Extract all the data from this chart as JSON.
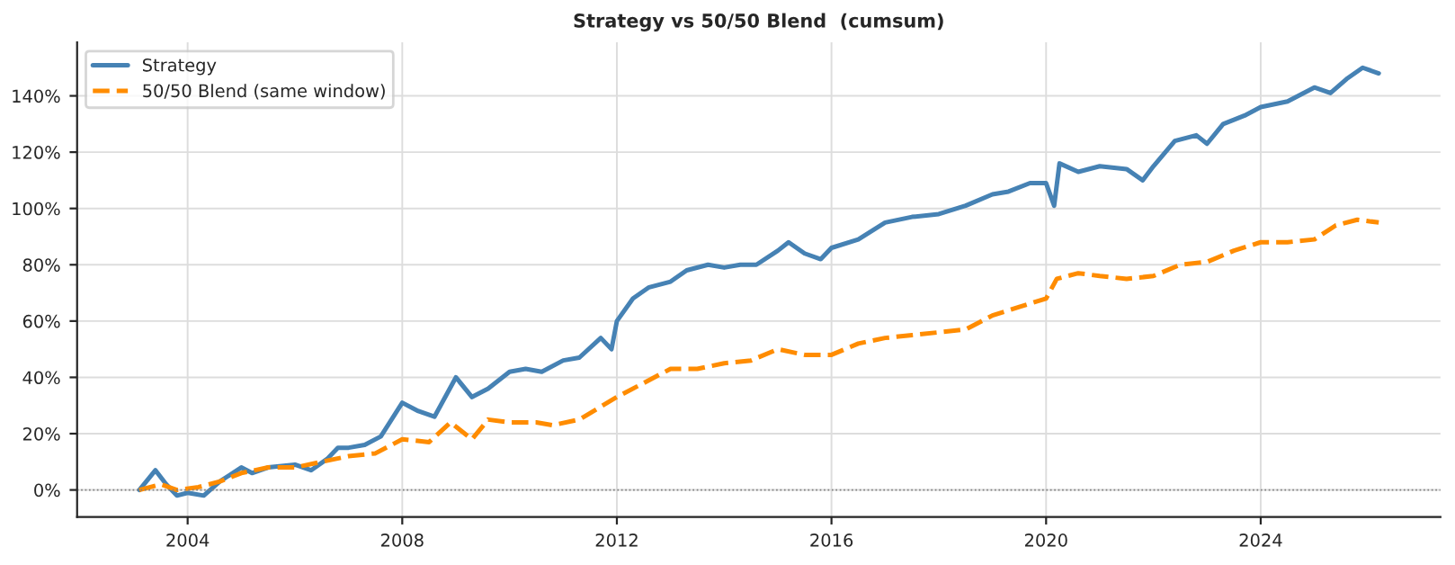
{
  "chart_data": {
    "type": "line",
    "title": "Strategy vs 50/50 Blend  (cumsum)",
    "series": [
      {
        "name": "Strategy",
        "color": "#4682b4",
        "line_style": "solid",
        "x": [
          2003.1,
          2003.4,
          2003.6,
          2003.8,
          2004.0,
          2004.3,
          2004.6,
          2005.0,
          2005.2,
          2005.5,
          2006.0,
          2006.3,
          2006.6,
          2006.8,
          2007.0,
          2007.3,
          2007.6,
          2008.0,
          2008.3,
          2008.6,
          2009.0,
          2009.3,
          2009.6,
          2010.0,
          2010.3,
          2010.6,
          2011.0,
          2011.3,
          2011.7,
          2011.9,
          2012.0,
          2012.3,
          2012.6,
          2013.0,
          2013.3,
          2013.7,
          2014.0,
          2014.3,
          2014.6,
          2015.0,
          2015.2,
          2015.5,
          2015.8,
          2016.0,
          2016.5,
          2017.0,
          2017.5,
          2018.0,
          2018.5,
          2019.0,
          2019.3,
          2019.7,
          2020.0,
          2020.15,
          2020.25,
          2020.6,
          2021.0,
          2021.5,
          2021.8,
          2022.0,
          2022.4,
          2022.8,
          2023.0,
          2023.3,
          2023.7,
          2024.0,
          2024.5,
          2025.0,
          2025.3,
          2025.6,
          2025.9,
          2026.2
        ],
        "values": [
          0,
          7,
          2,
          -2,
          -1,
          -2,
          3,
          8,
          6,
          8,
          9,
          7,
          11,
          15,
          15,
          16,
          19,
          31,
          28,
          26,
          40,
          33,
          36,
          42,
          43,
          42,
          46,
          47,
          54,
          50,
          60,
          68,
          72,
          74,
          78,
          80,
          79,
          80,
          80,
          85,
          88,
          84,
          82,
          86,
          89,
          95,
          97,
          98,
          101,
          105,
          106,
          109,
          109,
          101,
          116,
          113,
          115,
          114,
          110,
          115,
          124,
          126,
          123,
          130,
          133,
          136,
          138,
          143,
          141,
          146,
          150,
          148
        ]
      },
      {
        "name": "50/50 Blend (same window)",
        "color": "#ff8c00",
        "line_style": "dashed",
        "x": [
          2003.1,
          2003.5,
          2003.8,
          2004.2,
          2004.6,
          2005.0,
          2005.5,
          2006.0,
          2006.5,
          2007.0,
          2007.5,
          2008.0,
          2008.5,
          2008.9,
          2009.3,
          2009.6,
          2010.0,
          2010.5,
          2010.8,
          2011.3,
          2012.0,
          2012.5,
          2013.0,
          2013.5,
          2014.0,
          2014.5,
          2015.0,
          2015.5,
          2016.0,
          2016.5,
          2017.0,
          2017.5,
          2018.0,
          2018.5,
          2019.0,
          2019.5,
          2020.0,
          2020.2,
          2020.6,
          2021.0,
          2021.5,
          2022.0,
          2022.5,
          2023.0,
          2023.5,
          2024.0,
          2024.5,
          2025.0,
          2025.4,
          2025.8,
          2026.2
        ],
        "values": [
          0,
          2,
          0,
          1,
          3,
          6,
          8,
          8,
          10,
          12,
          13,
          18,
          17,
          24,
          18,
          25,
          24,
          24,
          23,
          25,
          33,
          38,
          43,
          43,
          45,
          46,
          50,
          48,
          48,
          52,
          54,
          55,
          56,
          57,
          62,
          65,
          68,
          75,
          77,
          76,
          75,
          76,
          80,
          81,
          85,
          88,
          88,
          89,
          94,
          96,
          95
        ]
      }
    ],
    "xlim": [
      2001.94,
      2027.35
    ],
    "xticks": [
      2004,
      2008,
      2012,
      2016,
      2020,
      2024
    ],
    "ylim": [
      -9.6,
      159
    ],
    "yticks": [
      {
        "value": 0,
        "label": "0%"
      },
      {
        "value": 20,
        "label": "20%"
      },
      {
        "value": 40,
        "label": "40%"
      },
      {
        "value": 60,
        "label": "60%"
      },
      {
        "value": 80,
        "label": "80%"
      },
      {
        "value": 100,
        "label": "100%"
      },
      {
        "value": 120,
        "label": "120%"
      },
      {
        "value": 140,
        "label": "140%"
      }
    ],
    "ref_lines": [
      {
        "axis": "y",
        "value": 0,
        "color": "#808080",
        "line_style": "dotted"
      }
    ],
    "grid": true,
    "legend": "top left"
  }
}
